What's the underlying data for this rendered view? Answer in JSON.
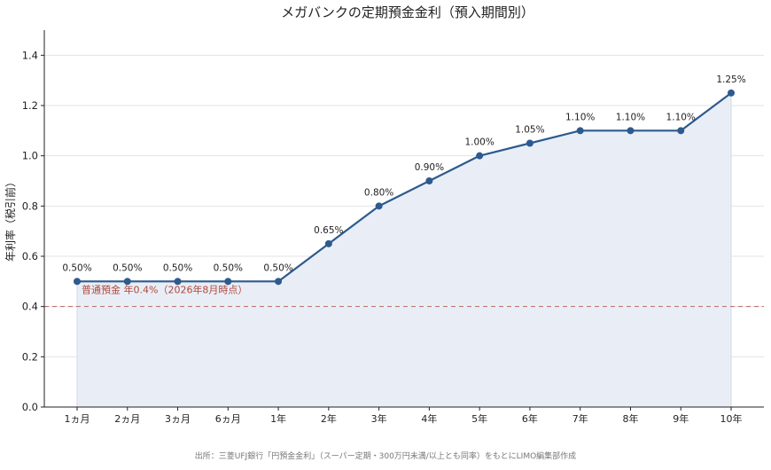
{
  "chart_data": {
    "type": "line",
    "title": "メガバンクの定期預金金利（預入期間別）",
    "xlabel": "",
    "ylabel": "年利率（税引前）",
    "categories": [
      "1ヵ月",
      "2ヵ月",
      "3ヵ月",
      "6ヵ月",
      "1年",
      "2年",
      "3年",
      "4年",
      "5年",
      "6年",
      "7年",
      "8年",
      "9年",
      "10年"
    ],
    "series": [
      {
        "values": [
          0.5,
          0.5,
          0.5,
          0.5,
          0.5,
          0.65,
          0.8,
          0.9,
          1.0,
          1.05,
          1.1,
          1.1,
          1.1,
          1.25
        ],
        "labels": [
          "0.50%",
          "0.50%",
          "0.50%",
          "0.50%",
          "0.50%",
          "0.65%",
          "0.80%",
          "0.90%",
          "1.00%",
          "1.05%",
          "1.10%",
          "1.10%",
          "1.10%",
          "1.25%"
        ],
        "color": "#2e5a8e",
        "fill_color": "#e9eef6"
      }
    ],
    "reference_line": {
      "value": 0.4,
      "label": "普通預金 年0.4%（2026年8月時点）",
      "color": "#b0463c",
      "style": "dashed"
    },
    "ylim": [
      0,
      1.5
    ],
    "yticks": [
      "0.0",
      "0.2",
      "0.4",
      "0.6",
      "0.8",
      "1.0",
      "1.2",
      "1.4"
    ],
    "ytick_values": [
      0,
      0.2,
      0.4,
      0.6,
      0.8,
      1.0,
      1.2,
      1.4
    ],
    "grid": "horizontal",
    "legend": "none"
  },
  "footer": {
    "source": "出所：三菱UFJ銀行「円預金金利」（スーパー定期・300万円未満/以上とも同率）をもとにLIMO編集部作成"
  }
}
